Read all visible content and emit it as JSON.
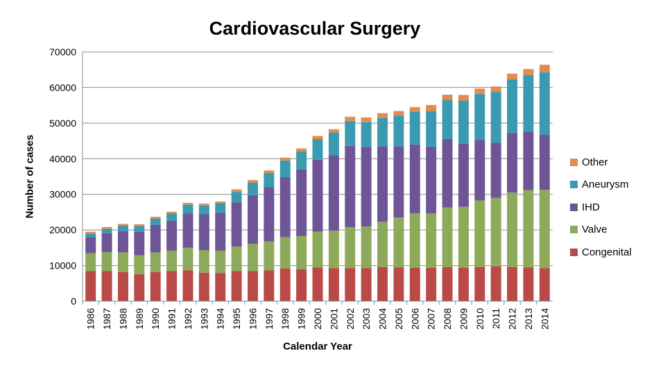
{
  "chart_data": {
    "type": "bar",
    "stacked": true,
    "title": "Cardiovascular Surgery",
    "xlabel": "Calendar Year",
    "ylabel": "Number of cases",
    "ylim": [
      0,
      70000
    ],
    "yticks": [
      0,
      10000,
      20000,
      30000,
      40000,
      50000,
      60000,
      70000
    ],
    "grid": "horizontal",
    "legend_position": "right",
    "categories": [
      "1986",
      "1987",
      "1988",
      "1989",
      "1990",
      "1991",
      "1992",
      "1993",
      "1994",
      "1995",
      "1996",
      "1997",
      "1998",
      "1999",
      "2000",
      "2001",
      "2002",
      "2003",
      "2004",
      "2005",
      "2006",
      "2007",
      "2008",
      "2009",
      "2010",
      "2011",
      "2012",
      "2013",
      "2014"
    ],
    "series": [
      {
        "name": "Congenital",
        "color": "#b94a48",
        "values": [
          8500,
          8500,
          8200,
          7600,
          8200,
          8500,
          8700,
          8000,
          7900,
          8500,
          8500,
          8700,
          9200,
          9000,
          9500,
          9300,
          9300,
          9300,
          9600,
          9500,
          9400,
          9400,
          9600,
          9400,
          9600,
          9800,
          9600,
          9500,
          9300
        ]
      },
      {
        "name": "Valve",
        "color": "#8daa5a",
        "values": [
          5000,
          5300,
          5500,
          5300,
          5500,
          5700,
          6300,
          6300,
          6300,
          6800,
          7600,
          8100,
          8800,
          9300,
          10000,
          10500,
          11500,
          11700,
          12700,
          14000,
          15300,
          15300,
          16700,
          17100,
          18700,
          19200,
          20900,
          21700,
          22000
        ]
      },
      {
        "name": "IHD",
        "color": "#6e5596",
        "values": [
          4500,
          5300,
          6000,
          6600,
          7700,
          8400,
          9600,
          10100,
          10600,
          12400,
          13700,
          15200,
          16800,
          18700,
          20200,
          21200,
          22800,
          22300,
          21200,
          20000,
          19300,
          18700,
          19200,
          17800,
          16900,
          15500,
          16800,
          16500,
          15500
        ]
      },
      {
        "name": "Aneurysm",
        "color": "#3a9bb0",
        "values": [
          1000,
          1200,
          1500,
          1600,
          1800,
          2000,
          2500,
          2500,
          2700,
          3000,
          3500,
          4000,
          4700,
          5000,
          5800,
          6400,
          7000,
          7000,
          8000,
          8600,
          9200,
          10000,
          11000,
          12000,
          13000,
          14300,
          15000,
          15800,
          17500
        ]
      },
      {
        "name": "Other",
        "color": "#e08d50",
        "values": [
          500,
          500,
          500,
          500,
          500,
          500,
          500,
          500,
          500,
          700,
          700,
          700,
          800,
          900,
          900,
          900,
          1200,
          1300,
          1300,
          1300,
          1300,
          1700,
          1500,
          1600,
          1500,
          1500,
          1600,
          1700,
          2100
        ]
      }
    ]
  }
}
